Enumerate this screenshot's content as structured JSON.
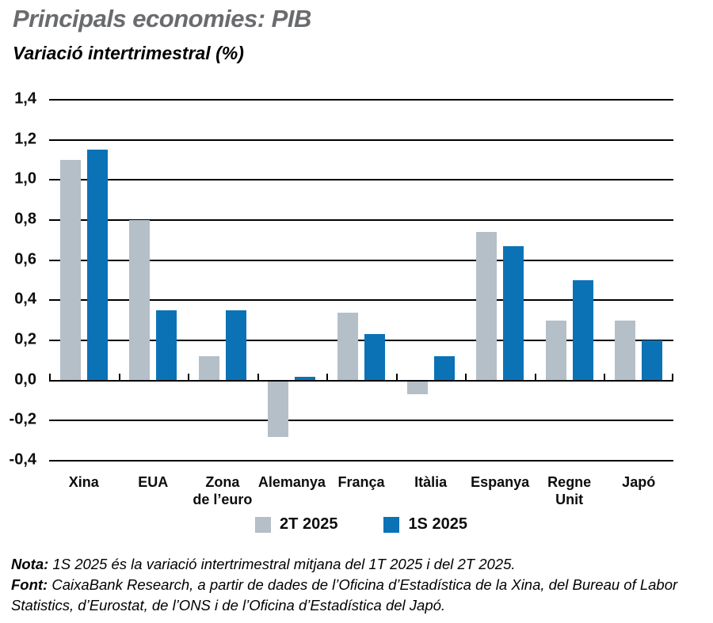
{
  "header": {
    "title": "Principals economies: PIB",
    "title_color": "#6a6b6e",
    "subtitle": "Variació intertrimestral (%)"
  },
  "chart_data": {
    "type": "bar",
    "categories": [
      "Xina",
      "EUA",
      "Zona\nde l’euro",
      "Alemanya",
      "França",
      "Itàlia",
      "Espanya",
      "Regne\nUnit",
      "Japó"
    ],
    "series": [
      {
        "name": "2T 2025",
        "color": "#b4bfc7",
        "values": [
          1.1,
          0.8,
          0.12,
          -0.28,
          0.34,
          -0.07,
          0.74,
          0.3,
          0.3
        ]
      },
      {
        "name": "1S 2025",
        "color": "#0b72b6",
        "values": [
          1.15,
          0.35,
          0.35,
          0.02,
          0.23,
          0.12,
          0.67,
          0.5,
          0.2
        ]
      }
    ],
    "ylim": [
      -0.4,
      1.4
    ],
    "ytick_step": 0.2,
    "ytick_labels": [
      "1,4",
      "1,2",
      "1,0",
      "0,8",
      "0,6",
      "0,4",
      "0,2",
      "0,0",
      "-0,2",
      "-0,4"
    ],
    "grid": true,
    "gridline_color": "#000000",
    "legend_position": "bottom"
  },
  "footnote": {
    "nota_label": "Nota:",
    "nota_text": " 1S 2025 és la variació intertrimestral mitjana del 1T 2025 i del 2T 2025.",
    "font_label": "Font:",
    "font_text": " CaixaBank Research, a partir de dades de l’Oficina d’Estadística de la Xina, del Bureau of Labor Statistics, d’Eurostat, de l’ONS i de l’Oficina d’Estadística del Japó."
  }
}
